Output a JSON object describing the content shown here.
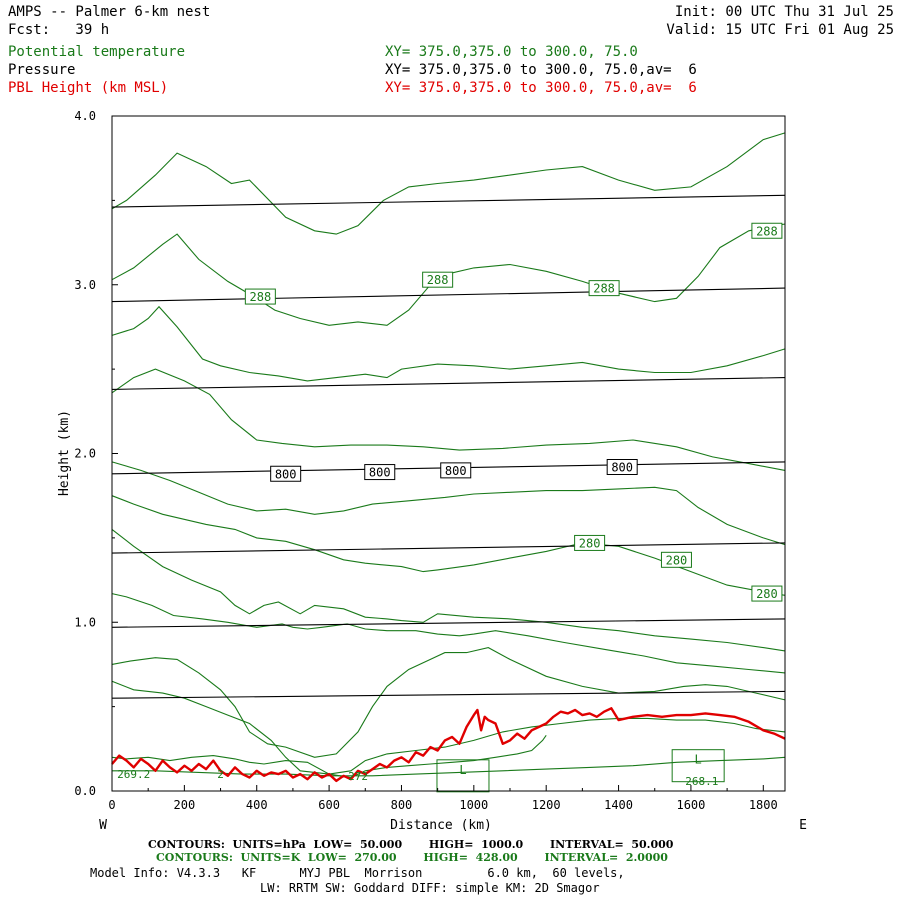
{
  "header": {
    "title": "AMPS -- Palmer 6-km nest",
    "fcst": "Fcst:   39 h",
    "init": "Init: 00 UTC Thu 31 Jul 25",
    "valid": "Valid: 15 UTC Fri 01 Aug 25",
    "field1": "Potential temperature",
    "field1_xy": "XY= 375.0,375.0 to 300.0, 75.0",
    "field2": "Pressure",
    "field2_xy": "XY= 375.0,375.0 to 300.0, 75.0,av=  6",
    "field3": "PBL Height (km MSL)",
    "field3_xy": "XY= 375.0,375.0 to 300.0, 75.0,av=  6"
  },
  "colors": {
    "theta": "#1a7a1a",
    "pressure": "#000000",
    "pbl": "#e00000"
  },
  "chart_data": {
    "type": "line",
    "xlabel": "Distance (km)",
    "ylabel": "Height (km)",
    "xlim": [
      0,
      1860
    ],
    "ylim": [
      0,
      4.0
    ],
    "xticks": [
      0,
      200,
      400,
      600,
      800,
      1000,
      1200,
      1400,
      1600,
      1800
    ],
    "yticks": [
      0.0,
      1.0,
      2.0,
      3.0,
      4.0
    ],
    "xtick_labels": [
      "0",
      "200",
      "400",
      "600",
      "800",
      "1000",
      "1200",
      "1400",
      "1600",
      "1800"
    ],
    "ytick_labels": [
      "0.0",
      "1.0",
      "2.0",
      "3.0",
      "4.0"
    ],
    "x_left_label": "W",
    "x_right_label": "E",
    "pressure_contours": [
      {
        "x": [
          0,
          1860
        ],
        "y": [
          0.55,
          0.59
        ]
      },
      {
        "x": [
          0,
          1860
        ],
        "y": [
          0.97,
          1.02
        ]
      },
      {
        "x": [
          0,
          1860
        ],
        "y": [
          1.41,
          1.47
        ]
      },
      {
        "x": [
          0,
          1860
        ],
        "y": [
          1.88,
          1.95
        ]
      },
      {
        "x": [
          0,
          1860
        ],
        "y": [
          2.38,
          2.45
        ]
      },
      {
        "x": [
          0,
          1860
        ],
        "y": [
          2.9,
          2.98
        ]
      },
      {
        "x": [
          0,
          1860
        ],
        "y": [
          3.46,
          3.53
        ]
      }
    ],
    "pressure_labels": [
      {
        "text": "800",
        "x": 480,
        "y": 1.88
      },
      {
        "text": "800",
        "x": 740,
        "y": 1.89
      },
      {
        "text": "800",
        "x": 950,
        "y": 1.9
      },
      {
        "text": "800",
        "x": 1410,
        "y": 1.92
      }
    ],
    "theta_contours": [
      {
        "x": [
          0,
          40,
          120,
          180,
          260,
          330,
          380,
          480,
          560,
          620,
          680,
          750,
          820,
          900,
          1000,
          1100,
          1200,
          1300,
          1400,
          1500,
          1600,
          1700,
          1800,
          1860
        ],
        "y": [
          3.45,
          3.5,
          3.65,
          3.78,
          3.7,
          3.6,
          3.62,
          3.4,
          3.32,
          3.3,
          3.35,
          3.5,
          3.58,
          3.6,
          3.62,
          3.65,
          3.68,
          3.7,
          3.62,
          3.56,
          3.58,
          3.7,
          3.86,
          3.9
        ]
      },
      {
        "x": [
          0,
          60,
          140,
          180,
          240,
          320,
          400,
          450,
          520,
          600,
          680,
          760,
          820,
          860,
          900,
          1000,
          1100,
          1200,
          1300,
          1400,
          1500,
          1560,
          1620,
          1680,
          1760,
          1860
        ],
        "y": [
          3.03,
          3.1,
          3.24,
          3.3,
          3.15,
          3.02,
          2.92,
          2.85,
          2.8,
          2.76,
          2.78,
          2.76,
          2.85,
          2.95,
          3.05,
          3.1,
          3.12,
          3.08,
          3.02,
          2.95,
          2.9,
          2.92,
          3.05,
          3.22,
          3.32,
          3.36
        ]
      },
      {
        "x": [
          0,
          60,
          100,
          130,
          180,
          250,
          300,
          380,
          460,
          540,
          620,
          700,
          760,
          800,
          900,
          1000,
          1100,
          1200,
          1300,
          1400,
          1500,
          1600,
          1700,
          1800,
          1860
        ],
        "y": [
          2.7,
          2.74,
          2.8,
          2.87,
          2.75,
          2.56,
          2.52,
          2.48,
          2.46,
          2.43,
          2.45,
          2.47,
          2.45,
          2.5,
          2.53,
          2.52,
          2.5,
          2.52,
          2.54,
          2.5,
          2.48,
          2.48,
          2.52,
          2.58,
          2.62
        ]
      },
      {
        "x": [
          0,
          60,
          120,
          200,
          270,
          330,
          400,
          470,
          560,
          660,
          760,
          860,
          960,
          1080,
          1200,
          1320,
          1440,
          1560,
          1660,
          1760,
          1860
        ],
        "y": [
          2.36,
          2.45,
          2.5,
          2.43,
          2.35,
          2.2,
          2.08,
          2.06,
          2.04,
          2.05,
          2.05,
          2.04,
          2.02,
          2.03,
          2.05,
          2.06,
          2.08,
          2.04,
          1.98,
          1.94,
          1.9
        ]
      },
      {
        "x": [
          0,
          80,
          160,
          240,
          320,
          400,
          480,
          560,
          640,
          720,
          820,
          920,
          1000,
          1100,
          1200,
          1300,
          1400,
          1500,
          1560,
          1620,
          1700,
          1800,
          1860
        ],
        "y": [
          1.95,
          1.9,
          1.84,
          1.77,
          1.7,
          1.66,
          1.67,
          1.64,
          1.66,
          1.7,
          1.72,
          1.74,
          1.76,
          1.77,
          1.78,
          1.78,
          1.79,
          1.8,
          1.78,
          1.68,
          1.58,
          1.5,
          1.46
        ]
      },
      {
        "x": [
          0,
          60,
          140,
          260,
          340,
          400,
          480,
          560,
          640,
          700,
          800,
          860,
          900,
          1000,
          1100,
          1200,
          1300,
          1400,
          1500,
          1600,
          1700,
          1800,
          1860
        ],
        "y": [
          1.75,
          1.7,
          1.64,
          1.58,
          1.55,
          1.5,
          1.48,
          1.43,
          1.37,
          1.35,
          1.33,
          1.3,
          1.31,
          1.34,
          1.38,
          1.42,
          1.47,
          1.45,
          1.38,
          1.3,
          1.22,
          1.18,
          1.16
        ]
      },
      {
        "x": [
          0,
          60,
          140,
          220,
          300,
          340,
          380,
          420,
          460,
          520,
          560,
          640,
          700,
          760,
          800,
          860,
          900,
          1000,
          1100,
          1200,
          1300,
          1400,
          1500,
          1600,
          1700,
          1800,
          1860
        ],
        "y": [
          1.55,
          1.45,
          1.33,
          1.25,
          1.18,
          1.1,
          1.05,
          1.1,
          1.12,
          1.05,
          1.1,
          1.08,
          1.03,
          1.02,
          1.01,
          1.0,
          1.05,
          1.03,
          1.02,
          1.0,
          0.97,
          0.95,
          0.92,
          0.9,
          0.88,
          0.85,
          0.83
        ]
      },
      {
        "x": [
          0,
          40,
          110,
          170,
          250,
          320,
          400,
          470,
          500,
          540,
          580,
          650,
          700,
          760,
          840,
          900,
          960,
          1000,
          1060,
          1150,
          1250,
          1360,
          1470,
          1560,
          1660,
          1760,
          1860
        ],
        "y": [
          1.17,
          1.15,
          1.1,
          1.04,
          1.02,
          1.0,
          0.97,
          0.99,
          0.97,
          0.96,
          0.97,
          0.99,
          0.96,
          0.95,
          0.95,
          0.93,
          0.92,
          0.93,
          0.95,
          0.92,
          0.88,
          0.84,
          0.8,
          0.76,
          0.74,
          0.72,
          0.7
        ]
      },
      {
        "x": [
          0,
          50,
          120,
          180,
          240,
          300,
          340,
          380,
          430,
          480,
          560,
          620,
          680,
          720,
          760,
          820,
          880,
          920,
          980,
          1040,
          1100,
          1200,
          1300,
          1400,
          1500,
          1580,
          1640,
          1700,
          1780,
          1860
        ],
        "y": [
          0.75,
          0.77,
          0.79,
          0.78,
          0.7,
          0.6,
          0.5,
          0.35,
          0.28,
          0.26,
          0.2,
          0.22,
          0.35,
          0.5,
          0.62,
          0.72,
          0.78,
          0.82,
          0.82,
          0.85,
          0.78,
          0.68,
          0.62,
          0.58,
          0.59,
          0.62,
          0.63,
          0.62,
          0.58,
          0.54
        ]
      },
      {
        "x": [
          0,
          60,
          140,
          200,
          260,
          320,
          380,
          440,
          480,
          520,
          600,
          660,
          700,
          760,
          840,
          920,
          1000,
          1080,
          1160,
          1240,
          1320,
          1400,
          1480,
          1560,
          1640,
          1720,
          1780,
          1860
        ],
        "y": [
          0.65,
          0.6,
          0.58,
          0.55,
          0.5,
          0.45,
          0.4,
          0.3,
          0.2,
          0.12,
          0.1,
          0.12,
          0.18,
          0.22,
          0.24,
          0.26,
          0.3,
          0.35,
          0.38,
          0.4,
          0.42,
          0.43,
          0.43,
          0.42,
          0.42,
          0.4,
          0.37,
          0.35
        ]
      },
      {
        "x": [
          0,
          40,
          100,
          160,
          220,
          280,
          340,
          380,
          420,
          480,
          540,
          600,
          660,
          700,
          760,
          820,
          880,
          940,
          1000,
          1060,
          1120,
          1160,
          1190,
          1200
        ],
        "y": [
          0.2,
          0.19,
          0.2,
          0.18,
          0.2,
          0.21,
          0.19,
          0.17,
          0.16,
          0.18,
          0.17,
          0.1,
          0.08,
          0.12,
          0.14,
          0.15,
          0.16,
          0.17,
          0.18,
          0.2,
          0.22,
          0.24,
          0.3,
          0.33
        ]
      },
      {
        "x": [
          0,
          120,
          240,
          360,
          480,
          600,
          720,
          840,
          960,
          1080,
          1200,
          1320,
          1440,
          1560,
          1680,
          1800,
          1860
        ],
        "y": [
          0.12,
          0.12,
          0.11,
          0.1,
          0.1,
          0.09,
          0.09,
          0.1,
          0.11,
          0.12,
          0.13,
          0.14,
          0.15,
          0.17,
          0.18,
          0.19,
          0.2
        ]
      }
    ],
    "theta_labels": [
      {
        "text": "288",
        "x": 410,
        "y": 2.93
      },
      {
        "text": "288",
        "x": 900,
        "y": 3.03
      },
      {
        "text": "288",
        "x": 1360,
        "y": 2.98
      },
      {
        "text": "288",
        "x": 1810,
        "y": 3.32
      },
      {
        "text": "280",
        "x": 1320,
        "y": 1.47
      },
      {
        "text": "280",
        "x": 1560,
        "y": 1.37
      },
      {
        "text": "280",
        "x": 1810,
        "y": 1.17
      }
    ],
    "low_markers": [
      {
        "text": "L",
        "x": 970,
        "y": 0.09
      },
      {
        "text": "L",
        "x": 1620,
        "y": 0.15
      }
    ],
    "small_values": [
      {
        "text": "269.2",
        "x": 60,
        "y": 0.1
      },
      {
        "text": "2",
        "x": 300,
        "y": 0.1
      },
      {
        "text": "272",
        "x": 680,
        "y": 0.09
      },
      {
        "text": "268.1",
        "x": 1630,
        "y": 0.06
      }
    ],
    "pbl_series": {
      "name": "PBL Height (km MSL)",
      "x": [
        0,
        20,
        40,
        60,
        80,
        100,
        120,
        140,
        160,
        180,
        200,
        220,
        240,
        260,
        280,
        300,
        320,
        340,
        360,
        380,
        400,
        420,
        440,
        460,
        480,
        500,
        520,
        540,
        560,
        580,
        600,
        620,
        640,
        660,
        680,
        700,
        720,
        740,
        760,
        780,
        800,
        820,
        840,
        860,
        880,
        900,
        920,
        940,
        960,
        980,
        1000,
        1010,
        1020,
        1030,
        1040,
        1060,
        1080,
        1100,
        1120,
        1140,
        1160,
        1180,
        1200,
        1220,
        1240,
        1260,
        1280,
        1300,
        1320,
        1340,
        1360,
        1380,
        1400,
        1440,
        1480,
        1520,
        1560,
        1600,
        1640,
        1680,
        1720,
        1760,
        1800,
        1830,
        1860
      ],
      "y": [
        0.16,
        0.21,
        0.18,
        0.14,
        0.19,
        0.16,
        0.12,
        0.18,
        0.14,
        0.11,
        0.15,
        0.12,
        0.16,
        0.13,
        0.18,
        0.12,
        0.09,
        0.14,
        0.1,
        0.08,
        0.12,
        0.09,
        0.11,
        0.1,
        0.12,
        0.08,
        0.1,
        0.07,
        0.11,
        0.08,
        0.1,
        0.06,
        0.09,
        0.07,
        0.12,
        0.1,
        0.13,
        0.16,
        0.14,
        0.18,
        0.2,
        0.17,
        0.23,
        0.21,
        0.26,
        0.24,
        0.3,
        0.32,
        0.28,
        0.38,
        0.45,
        0.48,
        0.36,
        0.44,
        0.42,
        0.4,
        0.28,
        0.3,
        0.34,
        0.31,
        0.36,
        0.38,
        0.4,
        0.44,
        0.47,
        0.46,
        0.48,
        0.45,
        0.46,
        0.44,
        0.47,
        0.49,
        0.42,
        0.44,
        0.45,
        0.44,
        0.45,
        0.45,
        0.46,
        0.45,
        0.44,
        0.41,
        0.36,
        0.34,
        0.31
      ]
    }
  },
  "footer": {
    "line1": "CONTOURS:  UNITS=hPa  LOW=  50.000       HIGH=  1000.0       INTERVAL=  50.000",
    "line2": "CONTOURS:  UNITS=K  LOW=  270.00       HIGH=  428.00       INTERVAL=  2.0000",
    "line3": "Model Info: V4.3.3   KF      MYJ PBL  Morrison         6.0 km,  60 levels,",
    "line4": "LW: RRTM SW: Goddard DIFF: simple KM: 2D Smagor"
  }
}
